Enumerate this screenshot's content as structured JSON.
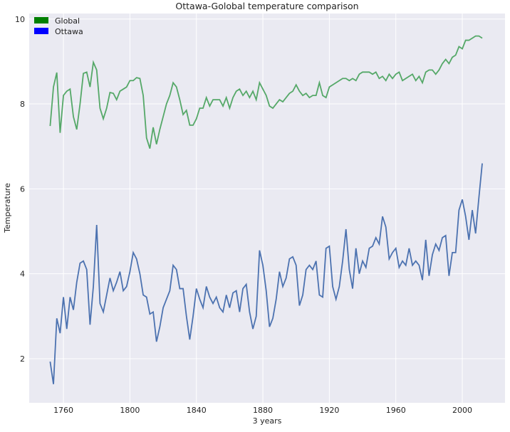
{
  "chart_data": {
    "type": "line",
    "title": "Ottawa-Golobal temperature comparison",
    "x_label": "3 years",
    "y_label": "Temperature",
    "x": [
      1752,
      1754,
      1756,
      1758,
      1760,
      1762,
      1764,
      1766,
      1768,
      1770,
      1772,
      1774,
      1776,
      1778,
      1780,
      1782,
      1784,
      1786,
      1788,
      1790,
      1792,
      1794,
      1796,
      1798,
      1800,
      1802,
      1804,
      1806,
      1808,
      1810,
      1812,
      1814,
      1816,
      1818,
      1820,
      1822,
      1824,
      1826,
      1828,
      1830,
      1832,
      1834,
      1836,
      1838,
      1840,
      1842,
      1844,
      1846,
      1848,
      1850,
      1852,
      1854,
      1856,
      1858,
      1860,
      1862,
      1864,
      1866,
      1868,
      1870,
      1872,
      1874,
      1876,
      1878,
      1880,
      1882,
      1884,
      1886,
      1888,
      1890,
      1892,
      1894,
      1896,
      1898,
      1900,
      1902,
      1904,
      1906,
      1908,
      1910,
      1912,
      1914,
      1916,
      1918,
      1920,
      1922,
      1924,
      1926,
      1928,
      1930,
      1932,
      1934,
      1936,
      1938,
      1940,
      1942,
      1944,
      1946,
      1948,
      1950,
      1952,
      1954,
      1956,
      1958,
      1960,
      1962,
      1964,
      1966,
      1968,
      1970,
      1972,
      1974,
      1976,
      1978,
      1980,
      1982,
      1984,
      1986,
      1988,
      1990,
      1992,
      1994,
      1996,
      1998,
      2000,
      2002,
      2004,
      2006,
      2008,
      2010,
      2012
    ],
    "series": [
      {
        "name": "Global",
        "color": "#55a868",
        "legend_color": "#008000",
        "values": [
          7.48,
          8.4,
          8.74,
          7.32,
          8.2,
          8.3,
          8.35,
          7.7,
          7.4,
          8.0,
          8.72,
          8.75,
          8.4,
          8.98,
          8.8,
          7.9,
          7.65,
          7.9,
          8.27,
          8.25,
          8.1,
          8.3,
          8.35,
          8.4,
          8.55,
          8.55,
          8.62,
          8.6,
          8.2,
          7.2,
          6.95,
          7.45,
          7.05,
          7.4,
          7.7,
          8.0,
          8.2,
          8.5,
          8.4,
          8.1,
          7.75,
          7.85,
          7.5,
          7.5,
          7.65,
          7.9,
          7.9,
          8.15,
          7.95,
          8.1,
          8.1,
          8.1,
          7.95,
          8.15,
          7.9,
          8.15,
          8.3,
          8.35,
          8.2,
          8.3,
          8.15,
          8.3,
          8.1,
          8.5,
          8.35,
          8.2,
          7.95,
          7.9,
          8.0,
          8.1,
          8.05,
          8.15,
          8.25,
          8.3,
          8.45,
          8.3,
          8.2,
          8.25,
          8.15,
          8.2,
          8.2,
          8.5,
          8.2,
          8.15,
          8.4,
          8.45,
          8.5,
          8.55,
          8.6,
          8.6,
          8.55,
          8.6,
          8.55,
          8.7,
          8.75,
          8.75,
          8.75,
          8.7,
          8.75,
          8.6,
          8.65,
          8.55,
          8.7,
          8.6,
          8.7,
          8.75,
          8.55,
          8.6,
          8.65,
          8.7,
          8.55,
          8.65,
          8.5,
          8.75,
          8.8,
          8.8,
          8.7,
          8.8,
          8.95,
          9.05,
          8.95,
          9.1,
          9.15,
          9.35,
          9.3,
          9.5,
          9.5,
          9.55,
          9.6,
          9.6,
          9.55
        ]
      },
      {
        "name": "Ottawa",
        "color": "#4c72b0",
        "legend_color": "#0000ff",
        "values": [
          1.93,
          1.4,
          2.95,
          2.6,
          3.45,
          2.7,
          3.45,
          3.15,
          3.8,
          4.25,
          4.3,
          4.1,
          2.8,
          3.7,
          5.15,
          3.3,
          3.1,
          3.5,
          3.9,
          3.6,
          3.8,
          4.05,
          3.6,
          3.7,
          4.05,
          4.5,
          4.35,
          4.0,
          3.5,
          3.45,
          3.05,
          3.1,
          2.4,
          2.75,
          3.2,
          3.4,
          3.6,
          4.2,
          4.1,
          3.65,
          3.65,
          3.0,
          2.45,
          3.0,
          3.65,
          3.4,
          3.2,
          3.7,
          3.45,
          3.3,
          3.45,
          3.2,
          3.1,
          3.5,
          3.2,
          3.55,
          3.6,
          3.1,
          3.65,
          3.75,
          3.1,
          2.7,
          3.0,
          4.55,
          4.2,
          3.6,
          2.75,
          2.95,
          3.4,
          4.05,
          3.7,
          3.9,
          4.35,
          4.4,
          4.2,
          3.25,
          3.5,
          4.1,
          4.2,
          4.1,
          4.3,
          3.5,
          3.45,
          4.6,
          4.65,
          3.7,
          3.4,
          3.7,
          4.3,
          5.05,
          4.1,
          3.65,
          4.6,
          4.0,
          4.3,
          4.15,
          4.6,
          4.65,
          4.85,
          4.7,
          5.35,
          5.1,
          4.35,
          4.5,
          4.6,
          4.15,
          4.3,
          4.2,
          4.6,
          4.2,
          4.3,
          4.2,
          3.85,
          4.8,
          3.95,
          4.45,
          4.7,
          4.55,
          4.85,
          4.9,
          3.95,
          4.5,
          4.5,
          5.5,
          5.75,
          5.35,
          4.8,
          5.5,
          4.95,
          5.8,
          6.6
        ]
      }
    ],
    "xlim": [
      1739.4,
      2025.7
    ],
    "xticks": [
      1760,
      1800,
      1840,
      1880,
      1920,
      1960,
      2000
    ],
    "ylim": [
      0.96,
      10.13
    ],
    "yticks": [
      2,
      4,
      6,
      8,
      10
    ],
    "grid": true,
    "legend": "upper left"
  }
}
